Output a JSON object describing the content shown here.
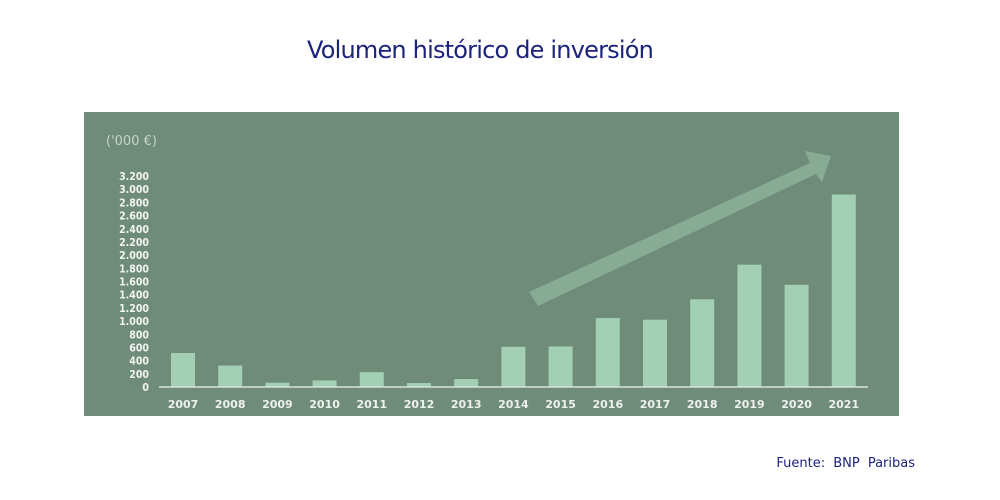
{
  "title": "Volumen histórico de inversión",
  "source": "Fuente: BNP Paribas",
  "colors": {
    "panel": "#6f8c7a",
    "bar": "#a3d0b4",
    "arrow": "#87ab95",
    "title": "#1b237a"
  },
  "chart_data": {
    "type": "bar",
    "title": "Volumen histórico de inversión",
    "ylabel": "('000 €)",
    "xlabel": "",
    "ylim": [
      0,
      3200
    ],
    "yticks": [
      0,
      200,
      400,
      600,
      800,
      1000,
      1200,
      1400,
      1600,
      1800,
      2000,
      2200,
      2400,
      2600,
      2800,
      3000,
      3200
    ],
    "ytick_labels": [
      "0",
      "200",
      "400",
      "600",
      "800",
      "1.000",
      "1.200",
      "1.400",
      "1.600",
      "1.800",
      "2.000",
      "2.200",
      "2.400",
      "2.600",
      "2.800",
      "3.000",
      "3.200"
    ],
    "categories": [
      "2007",
      "2008",
      "2009",
      "2010",
      "2011",
      "2012",
      "2013",
      "2014",
      "2015",
      "2016",
      "2017",
      "2018",
      "2019",
      "2020",
      "2021"
    ],
    "values": [
      515,
      325,
      65,
      100,
      225,
      60,
      120,
      610,
      615,
      1045,
      1020,
      1330,
      1855,
      1550,
      2920
    ],
    "annotations": [
      "upward trend arrow from 2014 to 2021"
    ],
    "grid": false
  }
}
